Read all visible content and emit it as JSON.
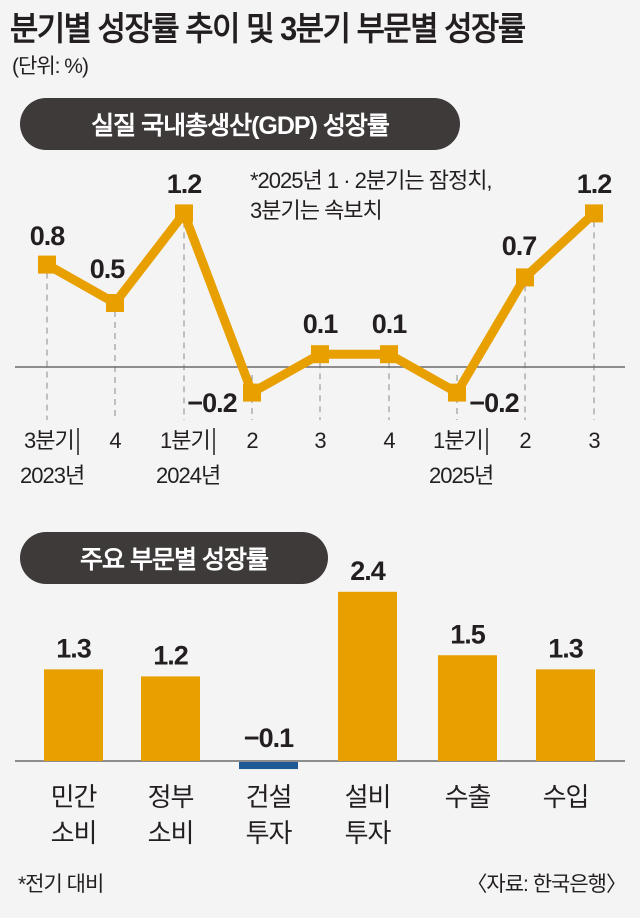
{
  "title": "분기별 성장률 추이 및 3분기 부문별 성장률",
  "unit": "(단위: %)",
  "line_section": {
    "heading": "실질 국내총생산(GDP) 성장률",
    "note_line1": "*2025년 1 · 2분기는 잠정치,",
    "note_line2": "3분기는 속보치"
  },
  "bar_section": {
    "heading": "주요 부문별 성장률"
  },
  "footer": {
    "note": "*전기 대비",
    "source": "〈자료: 한국은행〉"
  },
  "colors": {
    "accent": "#e8a000",
    "negative_bar": "#1f5a96",
    "pill_bg": "#3e3a39",
    "background": "#f4f4f4"
  },
  "chart_data": [
    {
      "type": "line",
      "title": "실질 국내총생산(GDP) 성장률",
      "categories": [
        "3분기 2023년",
        "4",
        "1분기 2024년",
        "2",
        "3",
        "4",
        "1분기 2025년",
        "2",
        "3"
      ],
      "tick_labels_top": [
        "3분기",
        "4",
        "1분기",
        "2",
        "3",
        "4",
        "1분기",
        "2",
        "3"
      ],
      "tick_labels_bottom": [
        "2023년",
        "",
        "2024년",
        "",
        "",
        "",
        "2025년",
        "",
        ""
      ],
      "values": [
        0.8,
        0.5,
        1.2,
        -0.2,
        0.1,
        0.1,
        -0.2,
        0.7,
        1.2
      ],
      "value_labels": [
        "0.8",
        "0.5",
        "1.2",
        "−0.2",
        "0.1",
        "0.1",
        "−0.2",
        "0.7",
        "1.2"
      ],
      "ylabel": "%",
      "annotation": "*2025년 1 · 2분기는 잠정치, 3분기는 속보치",
      "grid": "vertical dashed guides"
    },
    {
      "type": "bar",
      "title": "주요 부문별 성장률",
      "categories": [
        "민간 소비",
        "정부 소비",
        "건설 투자",
        "설비 투자",
        "수출",
        "수입"
      ],
      "cat_line1": [
        "민간",
        "정부",
        "건설",
        "설비",
        "수출",
        "수입"
      ],
      "cat_line2": [
        "소비",
        "소비",
        "투자",
        "투자",
        "",
        ""
      ],
      "values": [
        1.3,
        1.2,
        -0.1,
        2.4,
        1.5,
        1.3
      ],
      "value_labels": [
        "1.3",
        "1.2",
        "−0.1",
        "2.4",
        "1.5",
        "1.3"
      ],
      "ylabel": "%"
    }
  ]
}
